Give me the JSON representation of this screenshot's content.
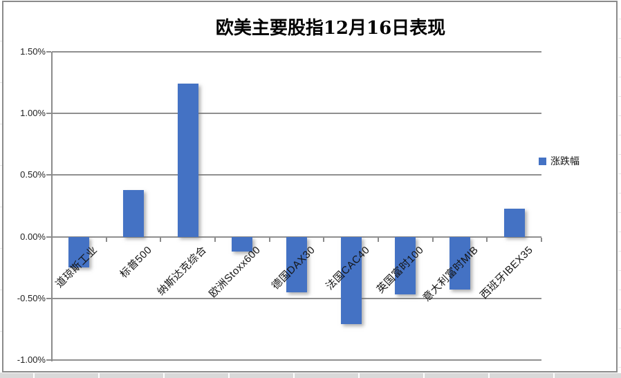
{
  "chart_data": {
    "type": "bar",
    "title": "欧美主要股指12月16日表现",
    "categories": [
      "道琼斯工业",
      "标普500",
      "纳斯达克综合",
      "欧洲Stoxx600",
      "德国DAX30",
      "法国CAC40",
      "英国富时100",
      "意大利富时MIB",
      "西班牙IBEX35"
    ],
    "series": [
      {
        "name": "涨跌幅",
        "values": [
          -0.25,
          0.38,
          1.24,
          -0.12,
          -0.45,
          -0.71,
          -0.47,
          -0.43,
          0.23
        ]
      }
    ],
    "unit": "percent",
    "ylim": [
      -1.0,
      1.5
    ],
    "yticks": [
      1.5,
      1.0,
      0.5,
      0.0,
      -0.5,
      -1.0
    ],
    "ytick_labels": [
      "1.50%",
      "1.00%",
      "0.50%",
      "0.00%",
      "-0.50%",
      "-1.00%"
    ],
    "grid": true,
    "legend_position": "right",
    "category_label_rotation": -45,
    "colors": {
      "bar": "#4472C4",
      "axis": "#8a8a8a",
      "gridline": "#8f8f8f",
      "text": "#141414"
    }
  }
}
